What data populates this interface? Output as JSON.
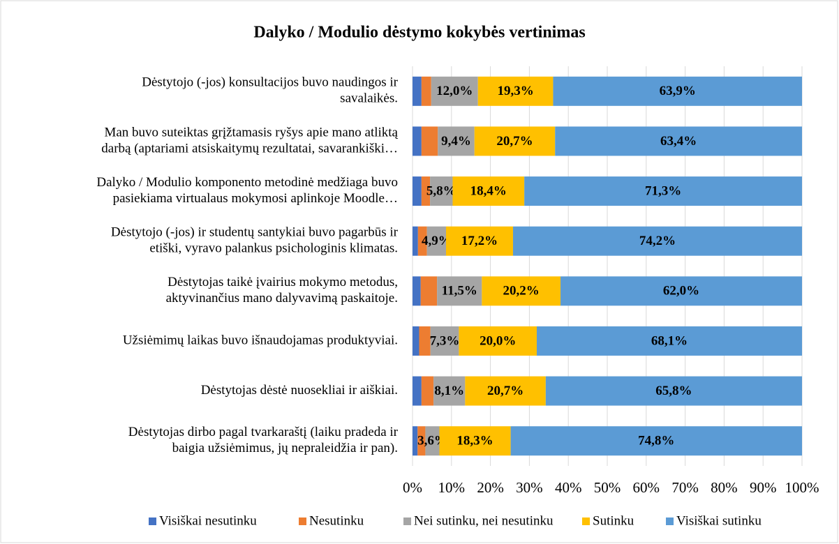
{
  "chart_data": {
    "type": "stacked-bar-horizontal",
    "title": "Dalyko / Modulio dėstymo kokybės vertinimas",
    "categories": [
      [
        "Dėstytojo (-jos) konsultacijos buvo naudingos ir",
        "savalaikės."
      ],
      [
        "Man buvo suteiktas grįžtamasis ryšys apie mano atliktą",
        "darbą (aptariami atsiskaitymų rezultatai, savarankiški…"
      ],
      [
        "Dalyko / Modulio komponento metodinė medžiaga buvo",
        "pasiekiama virtualaus mokymosi aplinkoje Moodle…"
      ],
      [
        "Dėstytojo (-jos) ir studentų santykiai buvo pagarbūs ir",
        "etiški, vyravo palankus psichologinis klimatas."
      ],
      [
        "Dėstytojas taikė įvairius mokymo metodus,",
        "aktyvinančius mano dalyvavimą paskaitoje."
      ],
      [
        "Užsiėmimų laikas buvo išnaudojamas produktyviai."
      ],
      [
        "Dėstytojas dėstė nuosekliai ir aiškiai."
      ],
      [
        "Dėstytojas dirbo pagal tvarkaraštį (laiku pradeda ir",
        "baigia užsiėmimus, jų nepraleidžia ir pan)."
      ]
    ],
    "series": [
      {
        "name": "Visiškai nesutinku",
        "color": "#4472c4",
        "values": [
          2.3,
          2.3,
          2.3,
          1.4,
          2.1,
          1.7,
          2.3,
          1.3
        ]
      },
      {
        "name": "Nesutinku",
        "color": "#ed7d31",
        "values": [
          2.5,
          4.2,
          2.2,
          2.3,
          4.2,
          2.9,
          3.1,
          2.0
        ]
      },
      {
        "name": "Nei sutinku, nei nesutinku",
        "color": "#a5a5a5",
        "values": [
          12.0,
          9.4,
          5.8,
          4.9,
          11.5,
          7.3,
          8.1,
          3.6
        ],
        "value_labels": [
          "12,0%",
          "9,4%",
          "5,8%",
          "4,9%",
          "11,5%",
          "7,3%",
          "8,1%",
          "3,6%"
        ]
      },
      {
        "name": "Sutinku",
        "color": "#ffc000",
        "values": [
          19.3,
          20.7,
          18.4,
          17.2,
          20.2,
          20.0,
          20.7,
          18.3
        ],
        "value_labels": [
          "19,3%",
          "20,7%",
          "18,4%",
          "17,2%",
          "20,2%",
          "20,0%",
          "20,7%",
          "18,3%"
        ]
      },
      {
        "name": "Visiškai sutinku",
        "color": "#5b9bd5",
        "values": [
          63.9,
          63.4,
          71.3,
          74.2,
          62.0,
          68.1,
          65.8,
          74.8
        ],
        "value_labels": [
          "63,9%",
          "63,4%",
          "71,3%",
          "74,2%",
          "62,0%",
          "68,1%",
          "65,8%",
          "74,8%"
        ]
      }
    ],
    "xlim": [
      0,
      100
    ],
    "xticks": [
      {
        "value": 0,
        "label": "0%"
      },
      {
        "value": 10,
        "label": "10%"
      },
      {
        "value": 20,
        "label": "20%"
      },
      {
        "value": 30,
        "label": "30%"
      },
      {
        "value": 40,
        "label": "40%"
      },
      {
        "value": 50,
        "label": "50%"
      },
      {
        "value": 60,
        "label": "60%"
      },
      {
        "value": 70,
        "label": "70%"
      },
      {
        "value": 80,
        "label": "80%"
      },
      {
        "value": 90,
        "label": "90%"
      },
      {
        "value": 100,
        "label": "100%"
      }
    ],
    "grid": true,
    "legend": "bottom"
  }
}
